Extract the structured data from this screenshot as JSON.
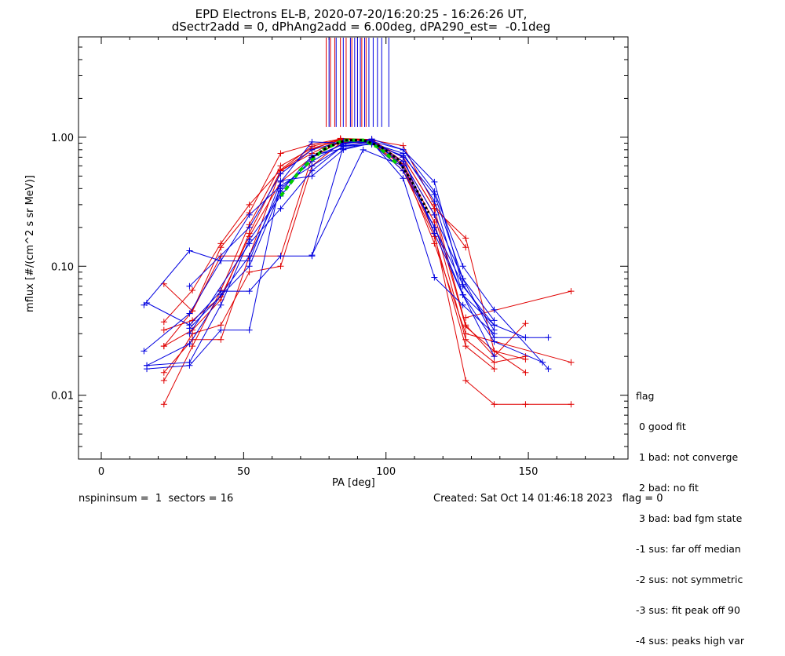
{
  "chart_data": {
    "type": "line",
    "title_line1": "EPD Electrons EL-B, 2020-07-20/16:20:25 - 16:26:26 UT,",
    "title_line2": "dSectr2add = 0, dPhAng2add = 6.00deg, dPA290_est=  -0.1deg",
    "xlabel": "PA [deg]",
    "ylabel": "mflux [#/(cm^2 s sr MeV)]",
    "xlim": [
      -8,
      185
    ],
    "ylim": [
      0.0032,
      6.0
    ],
    "yscale": "log",
    "x_ticks": [
      0,
      50,
      100,
      150
    ],
    "x_tick_labels": [
      "0",
      "50",
      "100",
      "150"
    ],
    "y_ticks": [
      0.01,
      0.1,
      1.0
    ],
    "y_tick_labels": [
      "0.01",
      "0.10",
      "1.00"
    ],
    "colors": {
      "red": "#e00000",
      "blue": "#0000e0",
      "green": "#00cc00",
      "black": "#000000"
    },
    "series": [
      {
        "color": "red",
        "x": [
          22,
          32,
          42,
          52,
          63,
          74,
          84,
          95,
          106,
          117,
          128,
          138,
          149
        ],
        "values": [
          0.024,
          0.045,
          0.14,
          0.26,
          0.75,
          0.88,
          0.97,
          0.93,
          0.7,
          0.28,
          0.035,
          0.02,
          0.036
        ]
      },
      {
        "color": "red",
        "x": [
          22,
          32,
          42,
          52,
          63,
          74,
          84,
          95,
          106,
          117,
          128,
          138,
          149
        ],
        "values": [
          0.0085,
          0.024,
          0.065,
          0.21,
          0.6,
          0.82,
          0.95,
          0.95,
          0.62,
          0.22,
          0.027,
          0.018,
          0.02
        ]
      },
      {
        "color": "red",
        "x": [
          22,
          32,
          42,
          52,
          63,
          74,
          84,
          95,
          106,
          117,
          128,
          138,
          149,
          165
        ],
        "values": [
          0.015,
          0.027,
          0.027,
          0.12,
          0.12,
          0.7,
          0.93,
          0.9,
          0.6,
          0.18,
          0.013,
          0.0085,
          0.0085,
          0.0085
        ]
      },
      {
        "color": "red",
        "x": [
          22,
          32,
          42,
          52,
          63,
          74,
          84,
          95,
          106,
          117,
          128,
          138,
          149
        ],
        "values": [
          0.073,
          0.045,
          0.12,
          0.12,
          0.55,
          0.8,
          0.98,
          0.96,
          0.65,
          0.25,
          0.034,
          0.022,
          0.019
        ]
      },
      {
        "color": "red",
        "x": [
          22,
          32,
          42,
          52,
          63,
          74,
          84,
          95,
          106,
          117,
          128,
          138,
          149
        ],
        "values": [
          0.037,
          0.065,
          0.15,
          0.3,
          0.56,
          0.85,
          0.96,
          0.94,
          0.7,
          0.28,
          0.165,
          0.022,
          0.015
        ]
      },
      {
        "color": "red",
        "x": [
          22,
          32,
          42,
          52,
          63,
          74,
          84,
          95,
          106,
          117,
          128,
          138
        ],
        "values": [
          0.013,
          0.03,
          0.035,
          0.09,
          0.1,
          0.6,
          0.9,
          0.92,
          0.55,
          0.17,
          0.024,
          0.016
        ]
      },
      {
        "color": "red",
        "x": [
          22,
          32,
          42,
          52,
          63,
          74,
          84,
          95,
          106,
          117,
          128
        ],
        "values": [
          0.024,
          0.032,
          0.055,
          0.18,
          0.55,
          0.75,
          0.97,
          0.95,
          0.86,
          0.3,
          0.14
        ]
      },
      {
        "color": "red",
        "x": [
          22,
          32,
          42,
          52,
          63,
          74,
          84,
          95,
          106,
          117,
          128,
          165
        ],
        "values": [
          0.032,
          0.038,
          0.058,
          0.17,
          0.45,
          0.7,
          0.92,
          0.9,
          0.6,
          0.15,
          0.03,
          0.018
        ]
      },
      {
        "color": "red",
        "x": [
          128,
          165
        ],
        "values": [
          0.04,
          0.064
        ]
      },
      {
        "color": "blue",
        "x": [
          15,
          31,
          42,
          52,
          63,
          74,
          85,
          95,
          106,
          117,
          127,
          138,
          149
        ],
        "values": [
          0.05,
          0.132,
          0.11,
          0.11,
          0.45,
          0.92,
          0.9,
          0.93,
          0.8,
          0.45,
          0.07,
          0.035,
          0.028
        ]
      },
      {
        "color": "blue",
        "x": [
          15,
          31,
          42,
          52,
          63,
          74,
          85,
          95,
          106,
          117,
          127,
          138,
          157
        ],
        "values": [
          0.022,
          0.043,
          0.11,
          0.25,
          0.42,
          0.6,
          0.85,
          0.88,
          0.72,
          0.36,
          0.08,
          0.028,
          0.028
        ]
      },
      {
        "color": "blue",
        "x": [
          16,
          31,
          42,
          52,
          63,
          74,
          85,
          95,
          106,
          117,
          127,
          138,
          157
        ],
        "values": [
          0.017,
          0.018,
          0.05,
          0.16,
          0.35,
          0.7,
          0.88,
          0.97,
          0.8,
          0.38,
          0.1,
          0.046,
          0.016
        ]
      },
      {
        "color": "blue",
        "x": [
          16,
          31,
          42,
          52,
          63,
          74,
          85,
          95,
          106,
          117,
          127,
          138,
          155
        ],
        "values": [
          0.016,
          0.017,
          0.032,
          0.032,
          0.46,
          0.5,
          0.8,
          0.9,
          0.75,
          0.32,
          0.06,
          0.026,
          0.018
        ]
      },
      {
        "color": "blue",
        "x": [
          16,
          31,
          42,
          52,
          63,
          74,
          85,
          95,
          106,
          117,
          127,
          138
        ],
        "values": [
          0.052,
          0.035,
          0.064,
          0.064,
          0.12,
          0.12,
          0.85,
          0.92,
          0.7,
          0.18,
          0.06,
          0.02
        ]
      },
      {
        "color": "blue",
        "x": [
          16,
          31,
          42,
          52,
          63,
          74,
          85,
          95,
          106,
          117,
          127,
          138
        ],
        "values": [
          0.017,
          0.025,
          0.06,
          0.12,
          0.4,
          0.65,
          0.9,
          0.95,
          0.6,
          0.2,
          0.072,
          0.032
        ]
      },
      {
        "color": "blue",
        "x": [
          31,
          52,
          63,
          74,
          85,
          95,
          106,
          117,
          127,
          138
        ],
        "values": [
          0.07,
          0.2,
          0.52,
          0.8,
          0.93,
          0.9,
          0.65,
          0.25,
          0.08,
          0.038
        ]
      },
      {
        "color": "blue",
        "x": [
          31,
          52,
          63,
          74,
          85,
          95,
          106,
          117,
          127,
          138
        ],
        "values": [
          0.033,
          0.1,
          0.38,
          0.72,
          0.82,
          0.9,
          0.55,
          0.2,
          0.06,
          0.035
        ]
      },
      {
        "color": "blue",
        "x": [
          31,
          52,
          63,
          74,
          85,
          95,
          106,
          117,
          127,
          138
        ],
        "values": [
          0.03,
          0.15,
          0.28,
          0.55,
          0.86,
          0.92,
          0.48,
          0.082,
          0.05,
          0.03
        ]
      },
      {
        "color": "blue",
        "x": [
          74,
          92,
          106
        ],
        "values": [
          0.122,
          0.8,
          0.6
        ]
      },
      {
        "color": "green",
        "style": "dashed",
        "x": [
          63,
          70,
          78,
          85,
          92,
          98,
          104
        ],
        "values": [
          0.35,
          0.56,
          0.8,
          0.95,
          0.95,
          0.82,
          0.62
        ]
      },
      {
        "color": "black",
        "style": "dotted",
        "x": [
          74,
          80,
          86,
          92,
          98,
          104,
          110,
          115
        ],
        "values": [
          0.7,
          0.85,
          0.95,
          0.95,
          0.85,
          0.68,
          0.42,
          0.26
        ]
      }
    ],
    "peak_marker_lines": {
      "values_min": 1.2,
      "red_x": [
        79,
        80.5,
        82,
        84,
        86,
        88,
        90,
        91.5,
        93
      ],
      "blue_x": [
        80,
        82.5,
        85,
        87.5,
        89,
        90,
        91,
        92.5,
        94,
        95.5,
        97,
        98.5,
        101
      ]
    }
  },
  "legend": {
    "lines": [
      "flag",
      " 0 good fit",
      " 1 bad: not converge",
      " 2 bad: no fit",
      " 3 bad: bad fgm state",
      "-1 sus: far off median",
      "-2 sus: not symmetric",
      "-3 sus: fit peak off 90",
      "-4 sus: peaks high var"
    ]
  },
  "footer": {
    "left": "nspininsum =  1  sectors = 16",
    "right": "Created: Sat Oct 14 01:46:18 2023   flag = 0"
  }
}
